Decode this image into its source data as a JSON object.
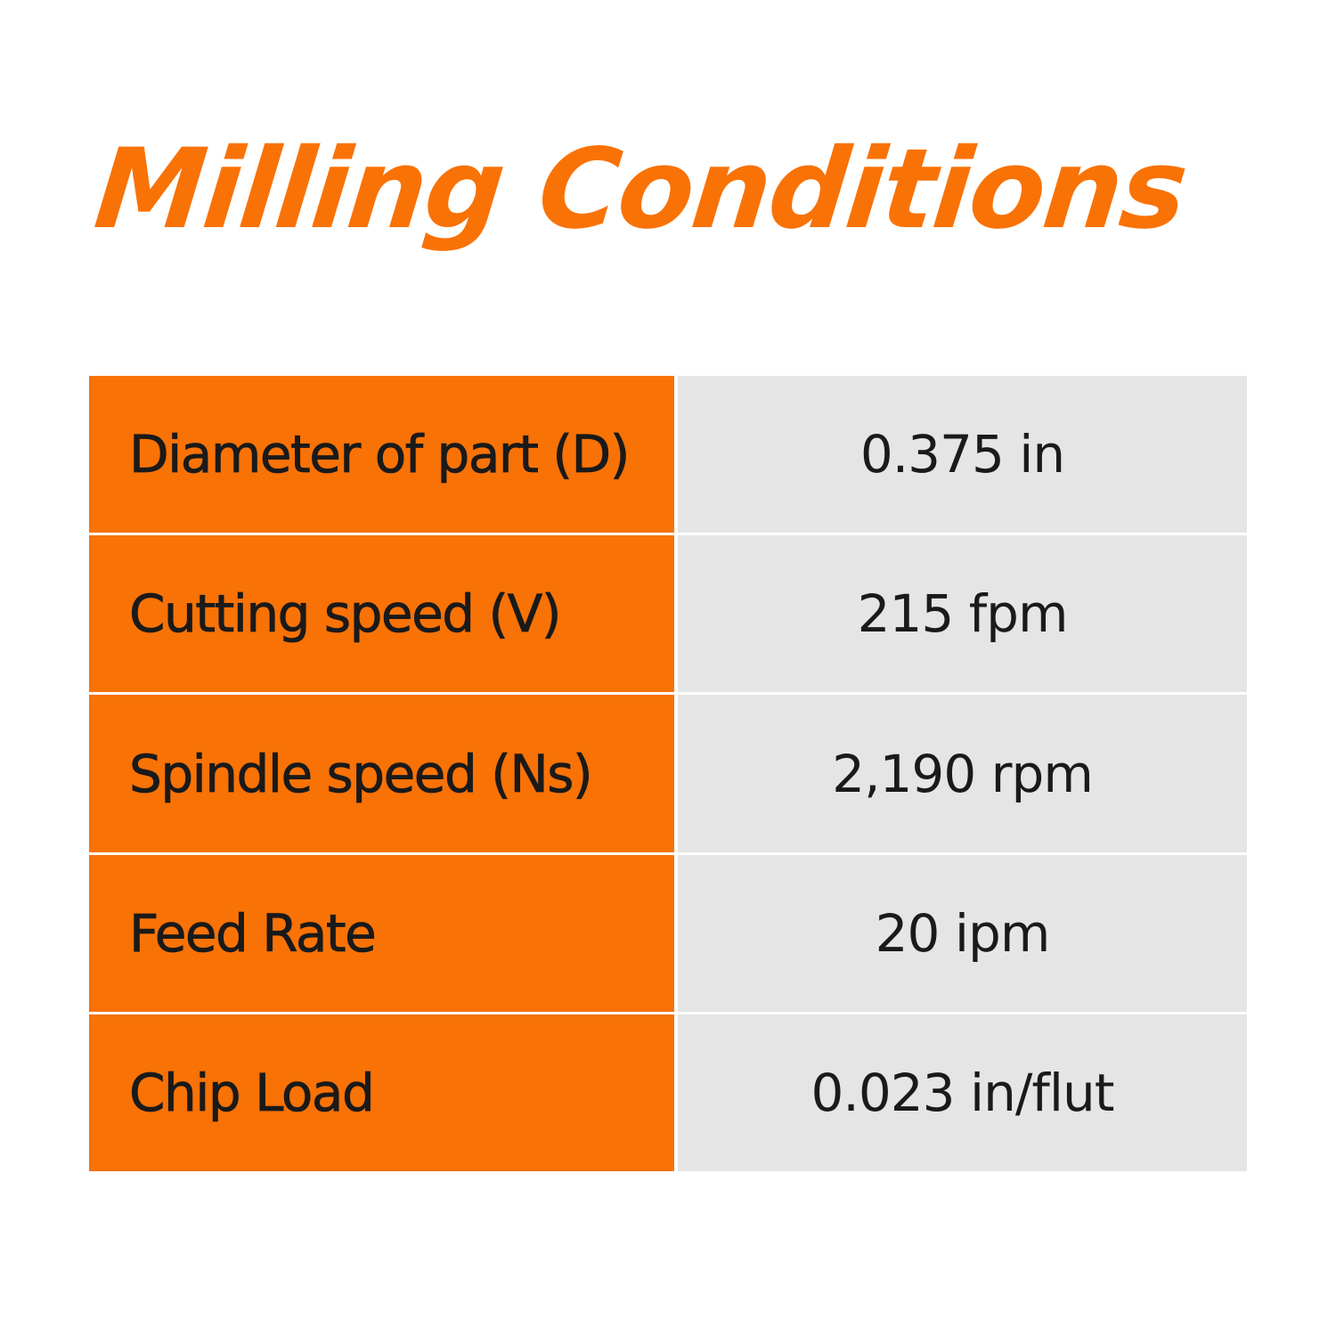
{
  "title": "Milling Conditions",
  "colors": {
    "accent": "#F97206",
    "label_bg": "#F97206",
    "value_bg": "#E5E5E5",
    "text": "#1A1A1A"
  },
  "table": {
    "rows": [
      {
        "label": "Diameter of part (D)",
        "value": "0.375 in"
      },
      {
        "label": "Cutting speed (V)",
        "value": "215 fpm"
      },
      {
        "label": "Spindle speed (Ns)",
        "value": "2,190 rpm"
      },
      {
        "label": "Feed Rate",
        "value": "20 ipm"
      },
      {
        "label": "Chip Load",
        "value": "0.023 in/flut"
      }
    ]
  }
}
